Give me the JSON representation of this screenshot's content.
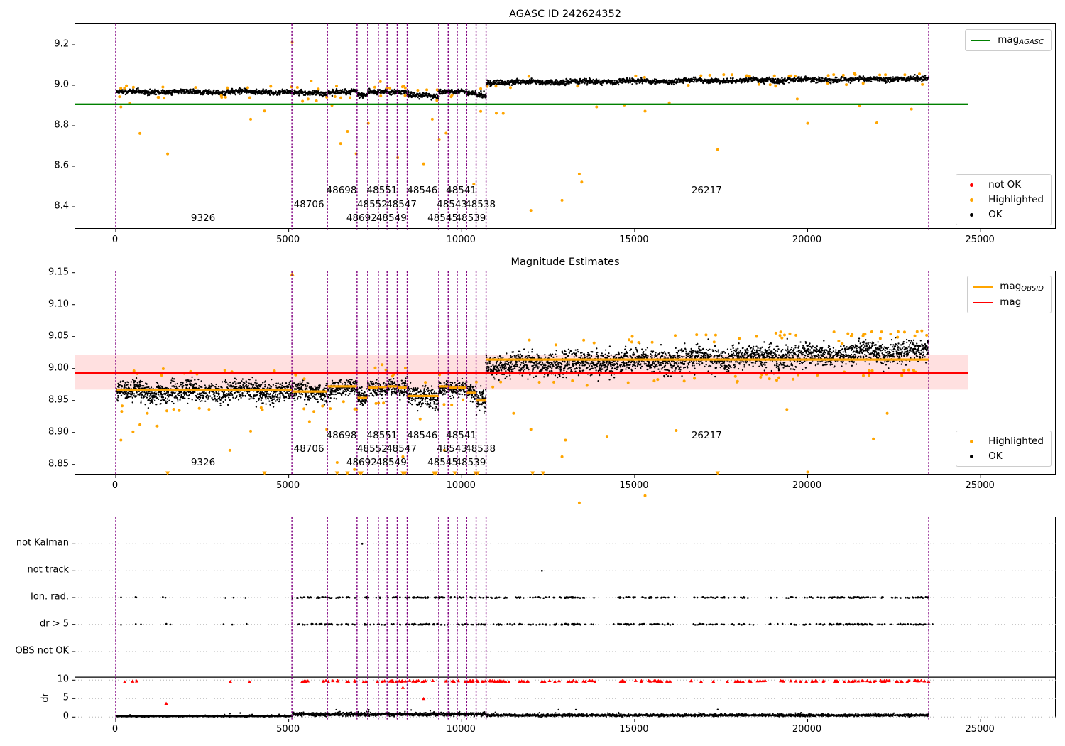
{
  "colors": {
    "ok": "#000000",
    "highlighted": "#FFA500",
    "not_ok": "#FF0000",
    "mag_agasc_line": "#008000",
    "mag_line": "#FF0000",
    "mag_band_fill": "rgba(255,0,0,0.12)",
    "obsid_line": "#FFA500",
    "boundary_line": "#800080",
    "grid": "#b5b5b5",
    "dr_limit_line": "#000000"
  },
  "xticks": {
    "values": [
      0,
      5000,
      10000,
      15000,
      20000,
      25000
    ],
    "labels": [
      "0",
      "5000",
      "10000",
      "15000",
      "20000",
      "25000"
    ]
  },
  "obsid_boundaries": [
    0,
    5092,
    6119,
    6975,
    7283,
    7591,
    7844,
    8137,
    8425,
    9337,
    9610,
    9871,
    10144,
    10417,
    10705,
    23500
  ],
  "obsid_labels": [
    {
      "text": "9326",
      "x": 2546,
      "row": 2
    },
    {
      "text": "48706",
      "x": 5605,
      "row": 1
    },
    {
      "text": "48698",
      "x": 6547,
      "row": 0
    },
    {
      "text": "48692",
      "x": 7129,
      "row": 2
    },
    {
      "text": "48552",
      "x": 7437,
      "row": 1
    },
    {
      "text": "48551",
      "x": 7717,
      "row": 0
    },
    {
      "text": "48549",
      "x": 7990,
      "row": 2
    },
    {
      "text": "48547",
      "x": 8281,
      "row": 1
    },
    {
      "text": "48546",
      "x": 8881,
      "row": 0
    },
    {
      "text": "48545",
      "x": 9473,
      "row": 2
    },
    {
      "text": "48543",
      "x": 9740,
      "row": 1
    },
    {
      "text": "48541",
      "x": 10007,
      "row": 0
    },
    {
      "text": "48539",
      "x": 10280,
      "row": 2
    },
    {
      "text": "48538",
      "x": 10561,
      "row": 1
    },
    {
      "text": "26217",
      "x": 17102,
      "row": 0
    }
  ],
  "chart_data": [
    {
      "type": "scatter",
      "title": "AGASC ID 242624352",
      "xlabel": "",
      "ylabel": "",
      "xlim": [
        -1200,
        27200
      ],
      "ylim": [
        8.29,
        9.3
      ],
      "yticks": {
        "values": [
          9.2,
          9.0,
          8.8,
          8.6,
          8.4
        ],
        "labels": [
          "9.2",
          "9.0",
          "8.8",
          "8.6",
          "8.4"
        ]
      },
      "agasc_line": {
        "value": 8.906,
        "x_end": 24640
      },
      "legend_line": {
        "base": "mag",
        "sub": "AGASC"
      },
      "legend_markers": [
        {
          "label": "not OK",
          "color_key": "not_ok"
        },
        {
          "label": "Highlighted",
          "color_key": "highlighted"
        },
        {
          "label": "OK",
          "color_key": "ok"
        }
      ],
      "ok_bands": [
        {
          "x0": 30,
          "x1": 5092,
          "y": 8.967,
          "s": 0.011
        },
        {
          "x0": 5092,
          "x1": 6119,
          "y": 8.961,
          "s": 0.011
        },
        {
          "x0": 6119,
          "x1": 6975,
          "y": 8.968,
          "s": 0.011
        },
        {
          "x0": 6975,
          "x1": 7283,
          "y": 8.952,
          "s": 0.012
        },
        {
          "x0": 7283,
          "x1": 7591,
          "y": 8.968,
          "s": 0.011
        },
        {
          "x0": 7591,
          "x1": 7844,
          "y": 8.972,
          "s": 0.009
        },
        {
          "x0": 7844,
          "x1": 8137,
          "y": 8.968,
          "s": 0.011
        },
        {
          "x0": 8137,
          "x1": 8425,
          "y": 8.968,
          "s": 0.01
        },
        {
          "x0": 8425,
          "x1": 9337,
          "y": 8.95,
          "s": 0.013
        },
        {
          "x0": 9337,
          "x1": 9610,
          "y": 8.97,
          "s": 0.01
        },
        {
          "x0": 9610,
          "x1": 9871,
          "y": 8.968,
          "s": 0.01
        },
        {
          "x0": 9871,
          "x1": 10144,
          "y": 8.968,
          "s": 0.01
        },
        {
          "x0": 10144,
          "x1": 10417,
          "y": 8.96,
          "s": 0.01
        },
        {
          "x0": 10417,
          "x1": 10705,
          "y": 8.95,
          "s": 0.013
        },
        {
          "x0": 10705,
          "x1": 23500,
          "y": 9.013,
          "y2": 9.032,
          "s": 0.011
        }
      ],
      "highlighted_points": [
        [
          150,
          8.893
        ],
        [
          400,
          8.912
        ],
        [
          700,
          8.762
        ],
        [
          1500,
          8.661
        ],
        [
          3900,
          8.832
        ],
        [
          4300,
          8.873
        ],
        [
          5100,
          9.212
        ],
        [
          5400,
          8.921
        ],
        [
          5650,
          9.021
        ],
        [
          5800,
          8.923
        ],
        [
          6100,
          8.941
        ],
        [
          6250,
          8.901
        ],
        [
          6500,
          8.712
        ],
        [
          6700,
          8.772
        ],
        [
          6950,
          8.662
        ],
        [
          7300,
          8.812
        ],
        [
          7650,
          9.018
        ],
        [
          8150,
          8.642
        ],
        [
          8900,
          8.612
        ],
        [
          9150,
          8.832
        ],
        [
          9350,
          8.733
        ],
        [
          9550,
          8.763
        ],
        [
          10350,
          8.512
        ],
        [
          10550,
          8.871
        ],
        [
          11000,
          8.862
        ],
        [
          11200,
          8.861
        ],
        [
          12000,
          8.382
        ],
        [
          12900,
          8.432
        ],
        [
          13400,
          8.562
        ],
        [
          13470,
          8.522
        ],
        [
          13900,
          8.893
        ],
        [
          14700,
          8.902
        ],
        [
          15300,
          8.872
        ],
        [
          16000,
          8.913
        ],
        [
          17400,
          8.682
        ],
        [
          19700,
          8.932
        ],
        [
          20000,
          8.812
        ],
        [
          21500,
          8.898
        ],
        [
          22000,
          8.814
        ],
        [
          23000,
          8.882
        ]
      ],
      "edge_speckle_count": 75
    },
    {
      "type": "scatter",
      "title": "Magnitude Estimates",
      "xlabel": "",
      "ylabel": "",
      "xlim": [
        -1200,
        27200
      ],
      "ylim": [
        8.833,
        9.152
      ],
      "yticks": {
        "values": [
          9.15,
          9.1,
          9.05,
          9.0,
          8.95,
          8.9,
          8.85
        ],
        "labels": [
          "9.15",
          "9.10",
          "9.05",
          "9.00",
          "8.95",
          "8.90",
          "8.85"
        ]
      },
      "mag_line": {
        "value": 8.993,
        "x_end": 24640
      },
      "mag_band": {
        "lo": 8.967,
        "hi": 9.021,
        "x_end": 24640
      },
      "legend_lines": [
        {
          "base": "mag",
          "sub": "OBSID",
          "color_key": "obsid_line"
        },
        {
          "base": "mag",
          "sub": "",
          "color_key": "mag_line"
        }
      ],
      "legend_markers": [
        {
          "label": "Highlighted",
          "color_key": "highlighted"
        },
        {
          "label": "OK",
          "color_key": "ok"
        }
      ],
      "obsid_segments": [
        {
          "x0": 30,
          "x1": 5092,
          "y": 8.966
        },
        {
          "x0": 5092,
          "x1": 6119,
          "y": 8.964
        },
        {
          "x0": 6119,
          "x1": 6975,
          "y": 8.972
        },
        {
          "x0": 6975,
          "x1": 7283,
          "y": 8.954
        },
        {
          "x0": 7283,
          "x1": 7591,
          "y": 8.97
        },
        {
          "x0": 7591,
          "x1": 7844,
          "y": 8.971
        },
        {
          "x0": 7844,
          "x1": 8137,
          "y": 8.972
        },
        {
          "x0": 8137,
          "x1": 8425,
          "y": 8.97
        },
        {
          "x0": 8425,
          "x1": 9337,
          "y": 8.957
        },
        {
          "x0": 9337,
          "x1": 9610,
          "y": 8.972
        },
        {
          "x0": 9610,
          "x1": 9871,
          "y": 8.97
        },
        {
          "x0": 9871,
          "x1": 10144,
          "y": 8.97
        },
        {
          "x0": 10144,
          "x1": 10417,
          "y": 8.962
        },
        {
          "x0": 10417,
          "x1": 10705,
          "y": 8.95
        },
        {
          "x0": 10705,
          "x1": 23500,
          "y": 9.014
        }
      ],
      "ok_bands": [
        {
          "x0": 30,
          "x1": 5092,
          "y": 8.965,
          "s": 0.014
        },
        {
          "x0": 5092,
          "x1": 6119,
          "y": 8.963,
          "s": 0.013
        },
        {
          "x0": 6119,
          "x1": 6975,
          "y": 8.97,
          "s": 0.013
        },
        {
          "x0": 6975,
          "x1": 7283,
          "y": 8.954,
          "s": 0.013
        },
        {
          "x0": 7283,
          "x1": 7591,
          "y": 8.969,
          "s": 0.012
        },
        {
          "x0": 7591,
          "x1": 7844,
          "y": 8.971,
          "s": 0.01
        },
        {
          "x0": 7844,
          "x1": 8137,
          "y": 8.971,
          "s": 0.012
        },
        {
          "x0": 8137,
          "x1": 8425,
          "y": 8.969,
          "s": 0.012
        },
        {
          "x0": 8425,
          "x1": 9337,
          "y": 8.955,
          "s": 0.014
        },
        {
          "x0": 9337,
          "x1": 9610,
          "y": 8.971,
          "s": 0.011
        },
        {
          "x0": 9610,
          "x1": 9871,
          "y": 8.969,
          "s": 0.011
        },
        {
          "x0": 9871,
          "x1": 10144,
          "y": 8.969,
          "s": 0.011
        },
        {
          "x0": 10144,
          "x1": 10417,
          "y": 8.961,
          "s": 0.011
        },
        {
          "x0": 10417,
          "x1": 10705,
          "y": 8.949,
          "s": 0.014
        },
        {
          "x0": 10705,
          "x1": 23500,
          "y": 9.004,
          "y2": 9.027,
          "s": 0.016
        }
      ],
      "highlighted_points": [
        [
          150,
          8.888
        ],
        [
          500,
          8.901
        ],
        [
          700,
          8.912
        ],
        [
          1200,
          8.91
        ],
        [
          3300,
          8.872
        ],
        [
          3900,
          8.902
        ],
        [
          5200,
          8.99
        ],
        [
          5600,
          8.917
        ],
        [
          6100,
          8.905
        ],
        [
          6400,
          8.853
        ],
        [
          6900,
          8.842
        ],
        [
          7500,
          9.001
        ],
        [
          7700,
          9.006
        ],
        [
          8000,
          8.988
        ],
        [
          8300,
          8.862
        ],
        [
          8800,
          8.921
        ],
        [
          9500,
          8.872
        ],
        [
          10900,
          8.971
        ],
        [
          11500,
          8.93
        ],
        [
          12000,
          8.905
        ],
        [
          12900,
          8.862
        ],
        [
          13000,
          8.888
        ],
        [
          13400,
          8.79
        ],
        [
          14200,
          8.894
        ],
        [
          15300,
          8.801
        ],
        [
          16000,
          8.72
        ],
        [
          16200,
          8.903
        ],
        [
          17500,
          8.612
        ],
        [
          19400,
          8.936
        ],
        [
          20000,
          8.838
        ],
        [
          20900,
          9.043
        ],
        [
          21000,
          9.039
        ],
        [
          21600,
          9.051
        ],
        [
          21900,
          8.89
        ],
        [
          22100,
          9.047
        ],
        [
          22300,
          8.93
        ],
        [
          22400,
          9.054
        ],
        [
          22600,
          9.049
        ],
        [
          22800,
          9.057
        ],
        [
          23100,
          9.051
        ],
        [
          23300,
          9.059
        ],
        [
          23440,
          9.052
        ]
      ],
      "clip_low_y": 8.836,
      "clip_low_x": [
        1500,
        4300,
        6400,
        6700,
        7050,
        7100,
        8300,
        8360,
        9200,
        9260,
        9800,
        10400,
        10460,
        12050,
        12350,
        17400
      ],
      "clip_high": [
        [
          5100,
          9.148
        ]
      ],
      "edge_speckle_count": 110
    },
    {
      "type": "event-strip",
      "row_labels": [
        "not Kalman",
        "not track",
        "Ion. rad.",
        "dr > 5",
        "OBS not OK"
      ],
      "dr_ticks": {
        "values": [
          10,
          5,
          0
        ],
        "labels": [
          "10",
          "5",
          "0"
        ]
      },
      "ylabel": "dr",
      "dr_limit_value": 10.8,
      "event_singles": [
        205,
        554,
        657,
        1458,
        3367,
        3819
      ],
      "event_clusters": [
        {
          "x0": 5150,
          "x1": 10700,
          "n": 70
        },
        {
          "x0": 10750,
          "x1": 13900,
          "n": 42
        },
        {
          "x0": 14500,
          "x1": 16100,
          "n": 24
        },
        {
          "x0": 16700,
          "x1": 19400,
          "n": 20
        },
        {
          "x0": 19500,
          "x1": 23480,
          "n": 58
        }
      ],
      "row_points": {
        "not_kalman": [
          7125
        ],
        "not_track": [
          12320
        ],
        "obs_not_ok": []
      },
      "red_singles": [
        205,
        554,
        657,
        3367,
        3819
      ],
      "red_isolated": [
        [
          1458,
          3.7
        ],
        [
          8300,
          8.0
        ],
        [
          8900,
          5.0
        ]
      ],
      "dr_segments": [
        {
          "x0": 30,
          "x1": 5092,
          "m": 0.25,
          "s": 0.16
        },
        {
          "x0": 5092,
          "x1": 10705,
          "m": 0.75,
          "s": 0.45
        },
        {
          "x0": 10705,
          "x1": 23500,
          "m": 0.5,
          "s": 0.28
        }
      ],
      "dr_spikes": [
        [
          3300,
          0.95
        ],
        [
          3600,
          1.1
        ],
        [
          12800,
          2.0
        ],
        [
          13300,
          2.0
        ],
        [
          17400,
          2.05
        ]
      ]
    }
  ]
}
